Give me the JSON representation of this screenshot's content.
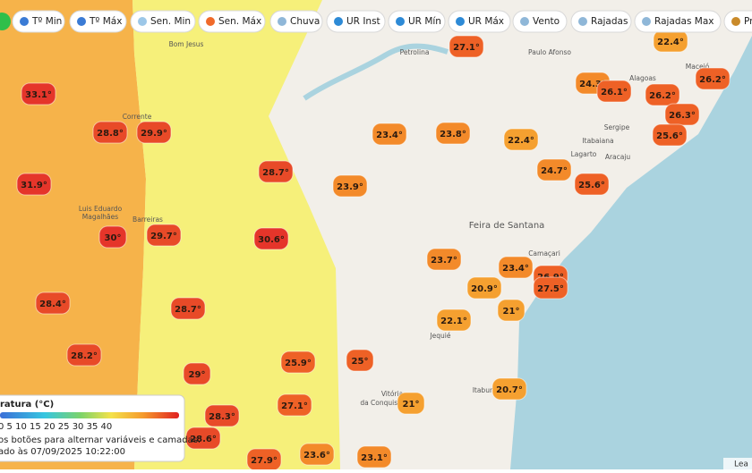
{
  "toolbar": {
    "buttons": [
      "Tº Min",
      "Tº Máx",
      "Sen. Min",
      "Sen. Máx",
      "Chuva",
      "UR Inst",
      "UR Mín",
      "UR Máx",
      "Vento",
      "Rajadas",
      "Rajadas Max",
      "Pre"
    ]
  },
  "map": {
    "places": [
      "Petrolina",
      "Paulo Afonso",
      "Bom Jesus",
      "Corrente",
      "Barreiras",
      "Luis Eduardo",
      "Magalhães",
      "Feira de Santana",
      "Camaçari",
      "Jequié",
      "Itabuna",
      "Vitória",
      "da Conquista",
      "Aracaju",
      "Lagarto",
      "Itabaiana",
      "Sergipe",
      "Alagoas",
      "Maceió"
    ],
    "markers": [
      "27.1°",
      "22.4°",
      "24.3°",
      "26.1°",
      "26.2°",
      "26.2°",
      "26.3°",
      "25.6°",
      "33.1°",
      "28.8°",
      "29.9°",
      "23.4°",
      "23.8°",
      "22.4°",
      "28.7°",
      "24.7°",
      "31.9°",
      "23.9°",
      "25.6°",
      "30°",
      "29.7°",
      "30.6°",
      "23.7°",
      "23.4°",
      "26.9°",
      "27.5°",
      "20.9°",
      "21°",
      "28.4°",
      "28.7°",
      "22.1°",
      "28.2°",
      "25°",
      "25.9°",
      "29°",
      "20.7°",
      "21°",
      "27.1°",
      "28.3°",
      "28.6°",
      "27.9°",
      "23.6°",
      "23.1°"
    ]
  },
  "legend": {
    "title": "ratura (°C)",
    "scale": "0 5 10 15 20 25 30 35 40",
    "note": "os botões para alternar variáveis e camadas.",
    "updated": "ado às 07/09/2025 10:22:00"
  },
  "attribution": "Lea"
}
